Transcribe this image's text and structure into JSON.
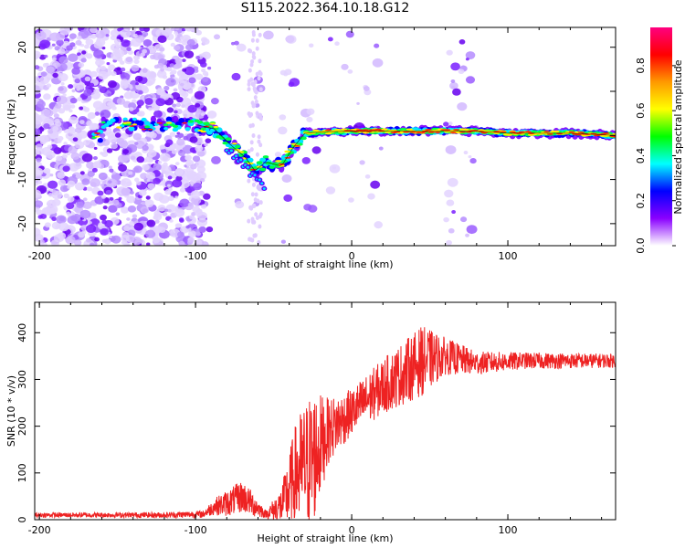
{
  "title": "S115.2022.364.10.18.G12",
  "chart_data": [
    {
      "type": "heatmap",
      "xlabel": "Height of straight line (km)",
      "ylabel": "Frequency (Hz)",
      "xlim": [
        -203,
        169
      ],
      "ylim": [
        -25,
        24.5
      ],
      "xticks": [
        -200,
        -100,
        0,
        100
      ],
      "yticks": [
        -20,
        -10,
        0,
        10,
        20
      ],
      "colorbar": {
        "label": "Normalized spectral amplitude",
        "range": [
          0,
          0.97
        ],
        "ticks": [
          "0.0",
          "0.2",
          "0.4",
          "0.6",
          "0.8"
        ],
        "tick_values": [
          0,
          0.2,
          0.4,
          0.6,
          0.8
        ],
        "colors": [
          "#ffffff",
          "#8a00ff",
          "#0000ff",
          "#00ffff",
          "#00ff00",
          "#ffff00",
          "#ff9900",
          "#ff0000",
          "#ff0080"
        ]
      },
      "ridge": [
        {
          "x": -160,
          "y": 2.5
        },
        {
          "x": -120,
          "y": 2.5
        },
        {
          "x": -100,
          "y": 2.5
        },
        {
          "x": -88,
          "y": 1.5
        },
        {
          "x": -78,
          "y": -2
        },
        {
          "x": -68,
          "y": -5
        },
        {
          "x": -62,
          "y": -8
        },
        {
          "x": -55,
          "y": -6
        },
        {
          "x": -45,
          "y": -7
        },
        {
          "x": -38,
          "y": -3
        },
        {
          "x": -30,
          "y": 0.5
        },
        {
          "x": -20,
          "y": 0.8
        },
        {
          "x": 0,
          "y": 1
        },
        {
          "x": 40,
          "y": 1
        },
        {
          "x": 80,
          "y": 1
        },
        {
          "x": 100,
          "y": 0.5
        },
        {
          "x": 140,
          "y": 0.5
        },
        {
          "x": 169,
          "y": 0
        }
      ],
      "grid": false
    },
    {
      "type": "line",
      "xlabel": "Height of straight line (km)",
      "ylabel": "SNR (10 * v/v)",
      "xlim": [
        -203,
        169
      ],
      "ylim": [
        0,
        465
      ],
      "xticks": [
        -200,
        -100,
        0,
        100
      ],
      "yticks": [
        0,
        100,
        200,
        300,
        400
      ],
      "color": "#ee2222",
      "envelope": [
        {
          "x": -203,
          "mean": 10,
          "amp": 5
        },
        {
          "x": -120,
          "mean": 10,
          "amp": 6
        },
        {
          "x": -95,
          "mean": 12,
          "amp": 8
        },
        {
          "x": -88,
          "mean": 28,
          "amp": 18
        },
        {
          "x": -80,
          "mean": 35,
          "amp": 28
        },
        {
          "x": -70,
          "mean": 50,
          "amp": 35
        },
        {
          "x": -62,
          "mean": 30,
          "amp": 25
        },
        {
          "x": -55,
          "mean": 12,
          "amp": 8
        },
        {
          "x": -45,
          "mean": 30,
          "amp": 40
        },
        {
          "x": -35,
          "mean": 100,
          "amp": 120
        },
        {
          "x": -25,
          "mean": 130,
          "amp": 150
        },
        {
          "x": -15,
          "mean": 190,
          "amp": 70
        },
        {
          "x": 0,
          "mean": 230,
          "amp": 50
        },
        {
          "x": 20,
          "mean": 285,
          "amp": 60
        },
        {
          "x": 45,
          "mean": 340,
          "amp": 75
        },
        {
          "x": 60,
          "mean": 350,
          "amp": 40
        },
        {
          "x": 80,
          "mean": 335,
          "amp": 25
        },
        {
          "x": 110,
          "mean": 340,
          "amp": 18
        },
        {
          "x": 169,
          "mean": 340,
          "amp": 15
        }
      ],
      "grid": false
    }
  ]
}
